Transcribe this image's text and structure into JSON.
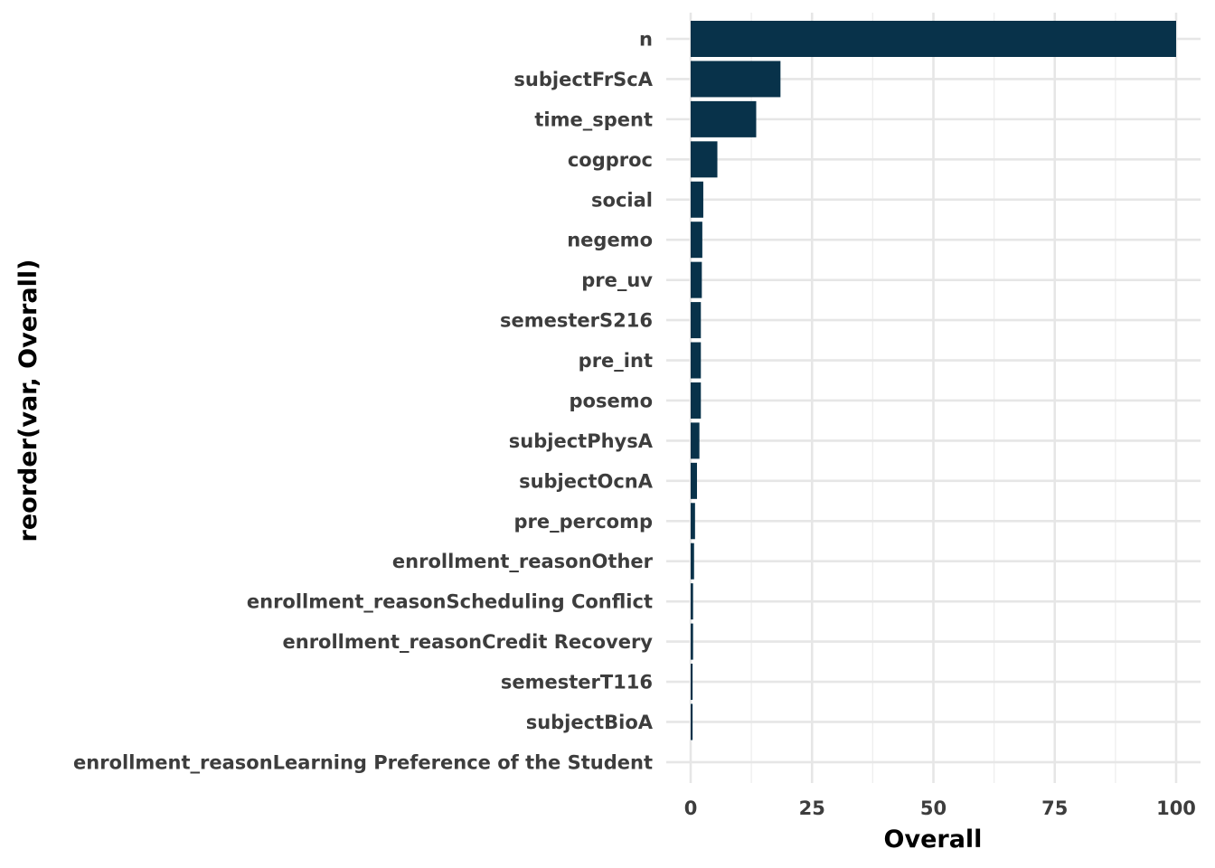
{
  "chart_data": {
    "type": "bar",
    "orientation": "horizontal",
    "xlabel": "Overall",
    "ylabel": "reorder(var, Overall)",
    "xlim": [
      0,
      105
    ],
    "xticks": [
      0,
      25,
      50,
      75,
      100
    ],
    "grid": true,
    "bar_color": "#08324a",
    "categories": [
      "n",
      "subjectFrScA",
      "time_spent",
      "cogproc",
      "social",
      "negemo",
      "pre_uv",
      "semesterS216",
      "pre_int",
      "posemo",
      "subjectPhysA",
      "subjectOcnA",
      "pre_percomp",
      "enrollment_reasonOther",
      "enrollment_reasonScheduling Conflict",
      "enrollment_reasonCredit Recovery",
      "semesterT116",
      "subjectBioA",
      "enrollment_reasonLearning Preference of the Student"
    ],
    "values": [
      100,
      18.5,
      13.5,
      5.5,
      2.6,
      2.4,
      2.3,
      2.1,
      2.1,
      2.1,
      1.8,
      1.3,
      0.9,
      0.7,
      0.5,
      0.5,
      0.4,
      0.4,
      0
    ]
  }
}
